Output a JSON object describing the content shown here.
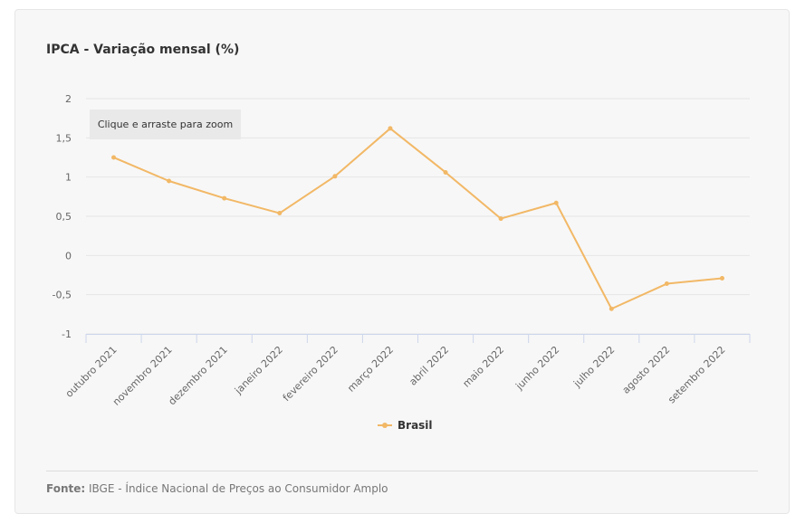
{
  "colors": {
    "series": "#f2b866",
    "grid": "#e6e6e6",
    "axis": "#ccd6eb"
  },
  "chart_data": {
    "type": "line",
    "title": "IPCA - Variação mensal (%)",
    "categories": [
      "outubro 2021",
      "novembro 2021",
      "dezembro 2021",
      "janeiro 2022",
      "fevereiro 2022",
      "março 2022",
      "abril 2022",
      "maio 2022",
      "junho 2022",
      "julho 2022",
      "agosto 2022",
      "setembro 2022"
    ],
    "series": [
      {
        "name": "Brasil",
        "values": [
          1.25,
          0.95,
          0.73,
          0.54,
          1.01,
          1.62,
          1.06,
          0.47,
          0.67,
          -0.68,
          -0.36,
          -0.29
        ]
      }
    ],
    "ylim": [
      -1,
      2
    ],
    "yticks": [
      2,
      1.5,
      1,
      0.5,
      0,
      -0.5,
      -1
    ],
    "ytick_labels": [
      "2",
      "1,5",
      "1",
      "0,5",
      "0",
      "-0,5",
      "-1"
    ],
    "grid": true,
    "legend": "bottom-center"
  },
  "zoom_hint": "Clique e arraste para zoom",
  "source": {
    "label": "Fonte:",
    "text": "IBGE - Índice Nacional de Preços ao Consumidor Amplo"
  }
}
